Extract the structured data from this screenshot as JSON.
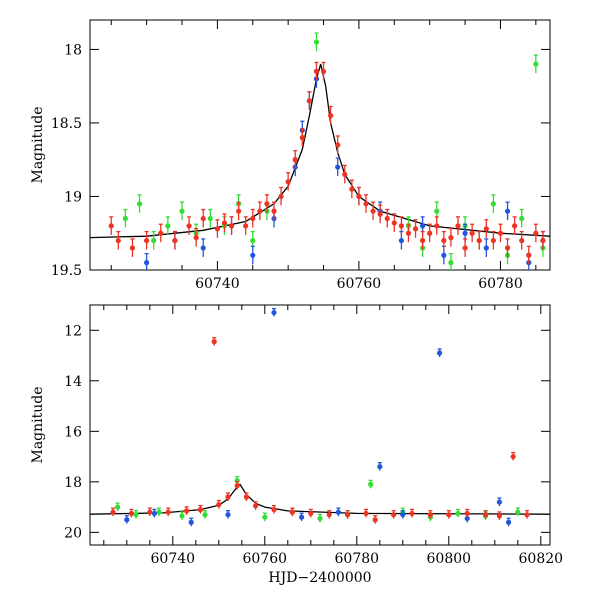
{
  "chart_data": [
    {
      "type": "scatter",
      "title": "",
      "xlabel": "",
      "ylabel": "Magnitude",
      "xlim": [
        60722,
        60787
      ],
      "ylim": [
        19.5,
        17.8
      ],
      "y_inverted": true,
      "xticks": [
        60740,
        60760,
        60780
      ],
      "yticks": [
        18,
        18.5,
        19,
        19.5
      ],
      "ytick_labels": [
        "18",
        "18.5",
        "19",
        "19.5"
      ],
      "grid": false,
      "legend": "none",
      "series": [
        {
          "color": "#33dd33",
          "points": [
            [
              60727,
              19.15
            ],
            [
              60729,
              19.05
            ],
            [
              60731,
              19.3
            ],
            [
              60733,
              19.2
            ],
            [
              60735,
              19.1
            ],
            [
              60737,
              19.25
            ],
            [
              60739,
              19.15
            ],
            [
              60741,
              19.2
            ],
            [
              60743,
              19.05
            ],
            [
              60745,
              19.3
            ],
            [
              60747,
              19.1
            ],
            [
              60754,
              17.95
            ],
            [
              60767,
              19.2
            ],
            [
              60769,
              19.35
            ],
            [
              60771,
              19.1
            ],
            [
              60773,
              19.45
            ],
            [
              60775,
              19.2
            ],
            [
              60777,
              19.3
            ],
            [
              60779,
              19.05
            ],
            [
              60781,
              19.4
            ],
            [
              60783,
              19.15
            ],
            [
              60785,
              18.1
            ],
            [
              60786,
              19.35
            ]
          ]
        },
        {
          "color": "#2255dd",
          "points": [
            [
              60730,
              19.45
            ],
            [
              60734,
              19.3
            ],
            [
              60738,
              19.35
            ],
            [
              60742,
              19.2
            ],
            [
              60745,
              19.4
            ],
            [
              60748,
              19.15
            ],
            [
              60751,
              18.8
            ],
            [
              60752,
              18.55
            ],
            [
              60753,
              18.35
            ],
            [
              60754,
              18.2
            ],
            [
              60757,
              18.8
            ],
            [
              60760,
              19.0
            ],
            [
              60763,
              19.1
            ],
            [
              60766,
              19.3
            ],
            [
              60769,
              19.2
            ],
            [
              60772,
              19.4
            ],
            [
              60775,
              19.25
            ],
            [
              60778,
              19.35
            ],
            [
              60781,
              19.1
            ],
            [
              60784,
              19.45
            ],
            [
              60786,
              19.3
            ]
          ]
        },
        {
          "color": "#ee3322",
          "points": [
            [
              60725,
              19.2
            ],
            [
              60726,
              19.3
            ],
            [
              60728,
              19.35
            ],
            [
              60730,
              19.3
            ],
            [
              60732,
              19.25
            ],
            [
              60734,
              19.3
            ],
            [
              60736,
              19.2
            ],
            [
              60737,
              19.28
            ],
            [
              60738,
              19.15
            ],
            [
              60740,
              19.22
            ],
            [
              60741,
              19.18
            ],
            [
              60742,
              19.2
            ],
            [
              60743,
              19.1
            ],
            [
              60744,
              19.2
            ],
            [
              60745,
              19.15
            ],
            [
              60746,
              19.1
            ],
            [
              60747,
              19.05
            ],
            [
              60748,
              19.1
            ],
            [
              60749,
              19.0
            ],
            [
              60750,
              18.9
            ],
            [
              60751,
              18.75
            ],
            [
              60752,
              18.6
            ],
            [
              60753,
              18.35
            ],
            [
              60754,
              18.15
            ],
            [
              60755,
              18.15
            ],
            [
              60756,
              18.45
            ],
            [
              60757,
              18.65
            ],
            [
              60758,
              18.85
            ],
            [
              60759,
              18.95
            ],
            [
              60760,
              19.0
            ],
            [
              60761,
              19.05
            ],
            [
              60762,
              19.1
            ],
            [
              60763,
              19.12
            ],
            [
              60764,
              19.15
            ],
            [
              60765,
              19.18
            ],
            [
              60766,
              19.2
            ],
            [
              60767,
              19.25
            ],
            [
              60768,
              19.22
            ],
            [
              60769,
              19.3
            ],
            [
              60770,
              19.25
            ],
            [
              60771,
              19.2
            ],
            [
              60772,
              19.3
            ],
            [
              60773,
              19.28
            ],
            [
              60774,
              19.2
            ],
            [
              60775,
              19.35
            ],
            [
              60776,
              19.25
            ],
            [
              60777,
              19.3
            ],
            [
              60778,
              19.22
            ],
            [
              60779,
              19.3
            ],
            [
              60780,
              19.25
            ],
            [
              60781,
              19.35
            ],
            [
              60782,
              19.2
            ],
            [
              60783,
              19.3
            ],
            [
              60784,
              19.4
            ],
            [
              60785,
              19.25
            ],
            [
              60786,
              19.3
            ]
          ]
        }
      ],
      "model_curve": [
        [
          60722,
          19.28
        ],
        [
          60730,
          19.27
        ],
        [
          60738,
          19.23
        ],
        [
          60744,
          19.17
        ],
        [
          60748,
          19.05
        ],
        [
          60750,
          18.93
        ],
        [
          60752,
          18.68
        ],
        [
          60753,
          18.45
        ],
        [
          60754,
          18.2
        ],
        [
          60754.6,
          18.1
        ],
        [
          60755.3,
          18.25
        ],
        [
          60756,
          18.5
        ],
        [
          60757,
          18.7
        ],
        [
          60758,
          18.85
        ],
        [
          60760,
          19.0
        ],
        [
          60763,
          19.1
        ],
        [
          60770,
          19.2
        ],
        [
          60780,
          19.25
        ],
        [
          60787,
          19.27
        ]
      ]
    },
    {
      "type": "scatter",
      "title": "",
      "xlabel": "HJD−2400000",
      "ylabel": "Magnitude",
      "xlim": [
        60722,
        60822
      ],
      "ylim": [
        20.5,
        11.0
      ],
      "y_inverted": true,
      "xticks": [
        60740,
        60760,
        60780,
        60800,
        60820
      ],
      "yticks": [
        12,
        14,
        16,
        18,
        20
      ],
      "ytick_labels": [
        "12",
        "14",
        "16",
        "18",
        "20"
      ],
      "grid": false,
      "legend": "none",
      "series": [
        {
          "color": "#33dd33",
          "points": [
            [
              60728,
              19.0
            ],
            [
              60732,
              19.3
            ],
            [
              60737,
              19.2
            ],
            [
              60742,
              19.35
            ],
            [
              60747,
              19.3
            ],
            [
              60754,
              17.95
            ],
            [
              60760,
              19.4
            ],
            [
              60766,
              19.2
            ],
            [
              60772,
              19.45
            ],
            [
              60778,
              19.3
            ],
            [
              60783,
              18.1
            ],
            [
              60790,
              19.2
            ],
            [
              60796,
              19.4
            ],
            [
              60802,
              19.25
            ],
            [
              60808,
              19.35
            ],
            [
              60815,
              19.2
            ]
          ]
        },
        {
          "color": "#2255dd",
          "points": [
            [
              60730,
              19.5
            ],
            [
              60736,
              19.25
            ],
            [
              60744,
              19.6
            ],
            [
              60752,
              19.3
            ],
            [
              60762,
              11.3
            ],
            [
              60768,
              19.4
            ],
            [
              60776,
              19.2
            ],
            [
              60785,
              17.4
            ],
            [
              60790,
              19.3
            ],
            [
              60798,
              12.9
            ],
            [
              60804,
              19.45
            ],
            [
              60811,
              18.8
            ],
            [
              60813,
              19.6
            ]
          ]
        },
        {
          "color": "#ee3322",
          "points": [
            [
              60727,
              19.2
            ],
            [
              60731,
              19.25
            ],
            [
              60735,
              19.2
            ],
            [
              60739,
              19.2
            ],
            [
              60743,
              19.15
            ],
            [
              60746,
              19.1
            ],
            [
              60749,
              12.45
            ],
            [
              60750,
              18.9
            ],
            [
              60752,
              18.6
            ],
            [
              60754,
              18.15
            ],
            [
              60756,
              18.6
            ],
            [
              60758,
              18.95
            ],
            [
              60762,
              19.1
            ],
            [
              60766,
              19.2
            ],
            [
              60770,
              19.25
            ],
            [
              60774,
              19.3
            ],
            [
              60778,
              19.3
            ],
            [
              60782,
              19.25
            ],
            [
              60784,
              19.5
            ],
            [
              60788,
              19.3
            ],
            [
              60792,
              19.25
            ],
            [
              60796,
              19.3
            ],
            [
              60800,
              19.3
            ],
            [
              60804,
              19.25
            ],
            [
              60808,
              19.3
            ],
            [
              60811,
              19.35
            ],
            [
              60814,
              17.0
            ],
            [
              60817,
              19.3
            ]
          ]
        }
      ],
      "model_curve": [
        [
          60722,
          19.28
        ],
        [
          60738,
          19.23
        ],
        [
          60746,
          19.1
        ],
        [
          60750,
          18.93
        ],
        [
          60752,
          18.68
        ],
        [
          60754,
          18.2
        ],
        [
          60754.6,
          18.1
        ],
        [
          60756,
          18.5
        ],
        [
          60758,
          18.85
        ],
        [
          60760,
          19.0
        ],
        [
          60765,
          19.15
        ],
        [
          60780,
          19.25
        ],
        [
          60822,
          19.28
        ]
      ]
    }
  ]
}
